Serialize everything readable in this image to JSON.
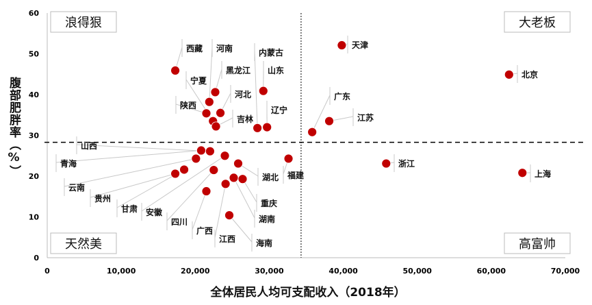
{
  "chart_data": {
    "type": "scatter",
    "title": "",
    "xlabel": "全体居民人均可支配收入（2018年）",
    "ylabel": "腹部肥胖率（%）",
    "xlim": [
      0,
      70000
    ],
    "ylim": [
      0,
      60
    ],
    "x_ticks": [
      "0",
      "10,000",
      "20,000",
      "30,000",
      "40,000",
      "50,000",
      "60,000",
      "70,000"
    ],
    "y_ticks": [
      "0",
      "10",
      "20",
      "30",
      "40",
      "50",
      "60"
    ],
    "grid": false,
    "reference_lines": {
      "x": 34300,
      "y": 28.3
    },
    "marker_color": "#c00000",
    "quadrant_labels": {
      "top_left": "浪得狠",
      "top_right": "大老板",
      "bottom_left": "天然美",
      "bottom_right": "高富帅"
    },
    "points": [
      {
        "name": "天津",
        "x": 39800,
        "y": 52.1
      },
      {
        "name": "北京",
        "x": 62400,
        "y": 44.9
      },
      {
        "name": "上海",
        "x": 64200,
        "y": 20.8
      },
      {
        "name": "浙江",
        "x": 45800,
        "y": 23.1
      },
      {
        "name": "广东",
        "x": 35800,
        "y": 30.8
      },
      {
        "name": "江苏",
        "x": 38100,
        "y": 33.5
      },
      {
        "name": "福建",
        "x": 32600,
        "y": 24.3
      },
      {
        "name": "西藏",
        "x": 17300,
        "y": 45.9
      },
      {
        "name": "山东",
        "x": 29200,
        "y": 40.9
      },
      {
        "name": "黑龙江",
        "x": 22700,
        "y": 40.6
      },
      {
        "name": "河南",
        "x": 21900,
        "y": 38.2
      },
      {
        "name": "陕西",
        "x": 21500,
        "y": 35.4
      },
      {
        "name": "河北",
        "x": 23400,
        "y": 35.5
      },
      {
        "name": "宁夏",
        "x": 22400,
        "y": 33.5
      },
      {
        "name": "吉林",
        "x": 22800,
        "y": 32.2
      },
      {
        "name": "内蒙古",
        "x": 28400,
        "y": 31.8
      },
      {
        "name": "辽宁",
        "x": 29700,
        "y": 32.0
      },
      {
        "name": "山西",
        "x": 22000,
        "y": 26.1
      },
      {
        "name": "青海",
        "x": 20800,
        "y": 26.3
      },
      {
        "name": "云南",
        "x": 20100,
        "y": 24.3
      },
      {
        "name": "甘肃",
        "x": 18500,
        "y": 21.6
      },
      {
        "name": "贵州",
        "x": 17300,
        "y": 20.6
      },
      {
        "name": "安徽",
        "x": 24000,
        "y": 25.0
      },
      {
        "name": "四川",
        "x": 22500,
        "y": 21.5
      },
      {
        "name": "湖北",
        "x": 25800,
        "y": 23.1
      },
      {
        "name": "湖南",
        "x": 25200,
        "y": 19.6
      },
      {
        "name": "重庆",
        "x": 26400,
        "y": 19.3
      },
      {
        "name": "江西",
        "x": 24100,
        "y": 18.1
      },
      {
        "name": "广西",
        "x": 21500,
        "y": 16.3
      },
      {
        "name": "海南",
        "x": 24600,
        "y": 10.4
      }
    ]
  }
}
